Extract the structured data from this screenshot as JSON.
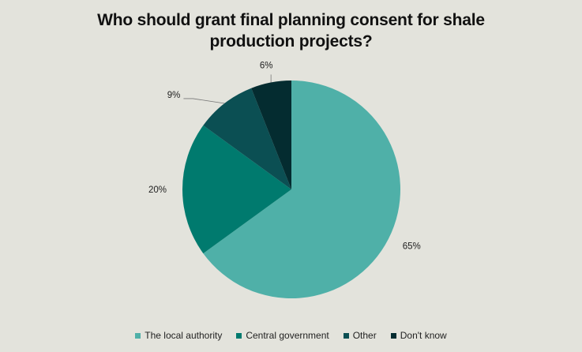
{
  "chart_data": {
    "type": "pie",
    "title_lines": [
      "Who should grant final planning consent for shale",
      "production projects?"
    ],
    "categories": [
      "The local authority",
      "Central government",
      "Other",
      "Don't know"
    ],
    "values": [
      65,
      20,
      9,
      6
    ],
    "labels": [
      "65%",
      "20%",
      "9%",
      "6%"
    ],
    "colors": [
      "#4fb0a8",
      "#007a6e",
      "#0b4f53",
      "#042c30"
    ],
    "legend_position": "bottom"
  }
}
